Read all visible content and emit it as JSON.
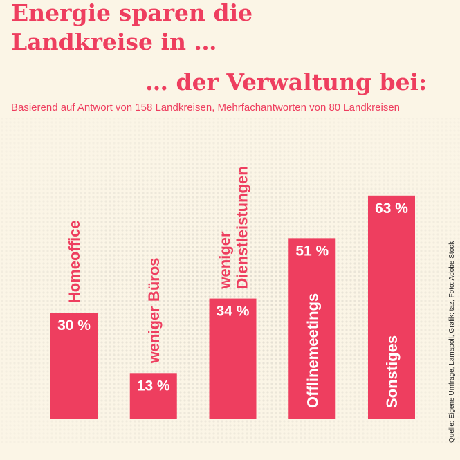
{
  "chart_data": {
    "type": "bar",
    "title_lines": [
      "Energie sparen die",
      "Landkreise in …"
    ],
    "heading": "… der Verwaltung bei:",
    "subtitle": "Basierend auf Antwort von 158 Landkreisen, Mehrfachantworten von 80 Landkreisen",
    "source": "Quelle: Eigene Umfrage, Lamapoll, Grafik: taz, Foto: Adobe Stock",
    "categories": [
      "Homeoffice",
      "weniger Büros",
      "weniger Dienstleistungen",
      "Offlinemeetings",
      "Sonstiges"
    ],
    "values": [
      30,
      13,
      34,
      51,
      63
    ],
    "value_labels": [
      "30 %",
      "13 %",
      "34 %",
      "51 %",
      "63 %"
    ],
    "color": "#ee3e5f"
  }
}
